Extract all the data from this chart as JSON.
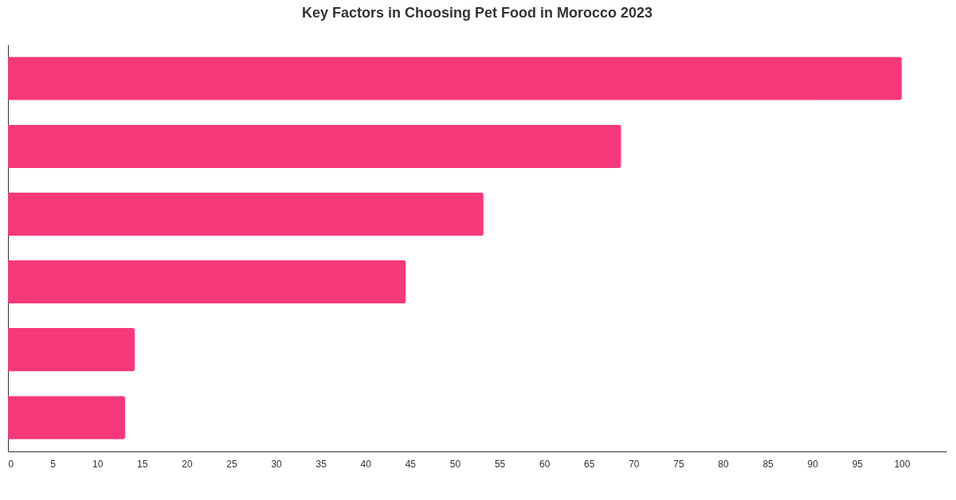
{
  "chart_data": {
    "type": "bar",
    "orientation": "horizontal",
    "title": "Key Factors in Choosing Pet Food in Morocco 2023",
    "categories": [
      null,
      null,
      null,
      null,
      null,
      null
    ],
    "values": [
      100,
      68.6,
      53.2,
      44.5,
      14.2,
      13.1
    ],
    "color": "#f5387a",
    "xlim": [
      0,
      105
    ],
    "xticks": [
      0,
      5,
      10,
      15,
      20,
      25,
      30,
      35,
      40,
      45,
      50,
      55,
      60,
      65,
      70,
      75,
      80,
      85,
      90,
      95,
      100
    ],
    "tick_labels": "x",
    "grid": false
  }
}
